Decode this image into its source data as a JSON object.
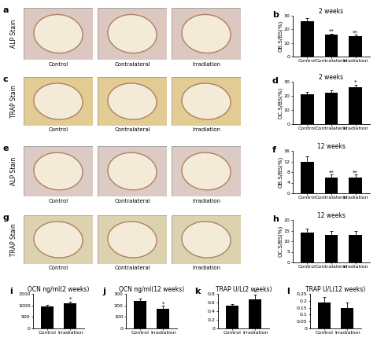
{
  "chart_data": [
    {
      "type": "bar",
      "panel": "b",
      "title": "2 weeks",
      "ylabel": "OB.S/BS(%)",
      "categories": [
        "Control",
        "Contralateral",
        "Irradiation"
      ],
      "values": [
        26,
        16,
        15
      ],
      "errors": [
        2,
        1,
        1
      ],
      "annotations": [
        null,
        "**",
        "**"
      ],
      "ylim": [
        0,
        30
      ],
      "yticks": [
        0,
        10,
        20,
        30
      ],
      "color": "#000000"
    },
    {
      "type": "bar",
      "panel": "d",
      "title": "2 weeks",
      "ylabel": "OC.S/BS(%)",
      "categories": [
        "Control",
        "Contralateral",
        "Irradiation"
      ],
      "values": [
        21,
        22,
        26
      ],
      "errors": [
        2,
        2,
        2
      ],
      "annotations": [
        null,
        null,
        "*"
      ],
      "ylim": [
        0,
        30
      ],
      "yticks": [
        0,
        10,
        20,
        30
      ],
      "color": "#000000"
    },
    {
      "type": "bar",
      "panel": "f",
      "title": "12 weeks",
      "ylabel": "OB.S/BS(%)",
      "categories": [
        "Control",
        "Contralateral",
        "Irradiation"
      ],
      "values": [
        12,
        6,
        6
      ],
      "errors": [
        2,
        1,
        1
      ],
      "annotations": [
        null,
        "**",
        "**"
      ],
      "ylim": [
        0,
        16
      ],
      "yticks": [
        0,
        4,
        8,
        12,
        16
      ],
      "color": "#000000"
    },
    {
      "type": "bar",
      "panel": "h",
      "title": "12 weeks",
      "ylabel": "OC.S/BS(%)",
      "categories": [
        "Control",
        "Contralateral",
        "Irradiation"
      ],
      "values": [
        14,
        13,
        13
      ],
      "errors": [
        2,
        2,
        2
      ],
      "annotations": [
        null,
        null,
        null
      ],
      "ylim": [
        0,
        20
      ],
      "yticks": [
        0,
        5,
        10,
        15,
        20
      ],
      "color": "#000000"
    },
    {
      "type": "bar",
      "panel": "i",
      "title": "OCN ng/ml(2 weeks)",
      "categories": [
        "Control",
        "Irradiation"
      ],
      "values": [
        950,
        1100
      ],
      "errors": [
        60,
        70
      ],
      "annotations": [
        null,
        "*"
      ],
      "ylim": [
        0,
        1500
      ],
      "yticks": [
        0,
        500,
        1000,
        1500
      ],
      "color": "#000000"
    },
    {
      "type": "bar",
      "panel": "j",
      "title": "OCN ng/ml(12 weeks)",
      "categories": [
        "Control",
        "Irradiation"
      ],
      "values": [
        240,
        170
      ],
      "errors": [
        20,
        25
      ],
      "annotations": [
        null,
        "*"
      ],
      "ylim": [
        0,
        300
      ],
      "yticks": [
        0,
        100,
        200,
        300
      ],
      "color": "#000000"
    },
    {
      "type": "bar",
      "panel": "k",
      "title": "TRAP U/L(2 weeks)",
      "categories": [
        "Control",
        "Irradiation"
      ],
      "values": [
        0.53,
        0.68
      ],
      "errors": [
        0.04,
        0.1
      ],
      "annotations": [
        null,
        "*"
      ],
      "ylim": [
        0,
        0.8
      ],
      "yticks": [
        0,
        0.2,
        0.4,
        0.6,
        0.8
      ],
      "color": "#000000"
    },
    {
      "type": "bar",
      "panel": "l",
      "title": "TRAP U/L(12 weeks)",
      "categories": [
        "Control",
        "Irradiation"
      ],
      "values": [
        0.19,
        0.15
      ],
      "errors": [
        0.04,
        0.04
      ],
      "annotations": [
        null,
        null
      ],
      "ylim": [
        0,
        0.25
      ],
      "yticks": [
        0,
        0.05,
        0.1,
        0.15,
        0.2,
        0.25
      ],
      "color": "#000000"
    }
  ],
  "images": [
    {
      "panel": "a",
      "side_label": "ALP Stain",
      "captions": [
        "Control",
        "Contralateral",
        "Irradiation"
      ]
    },
    {
      "panel": "c",
      "side_label": "TRAP Stain",
      "captions": [
        "Control",
        "Contralateral",
        "Irradiation"
      ]
    },
    {
      "panel": "e",
      "side_label": "ALP Stain",
      "captions": [
        "Control",
        "Contralateral",
        "Irradiation"
      ]
    },
    {
      "panel": "g",
      "side_label": "TRAP Stain",
      "captions": [
        "Control",
        "Contralateral",
        "Irradiation"
      ]
    }
  ]
}
